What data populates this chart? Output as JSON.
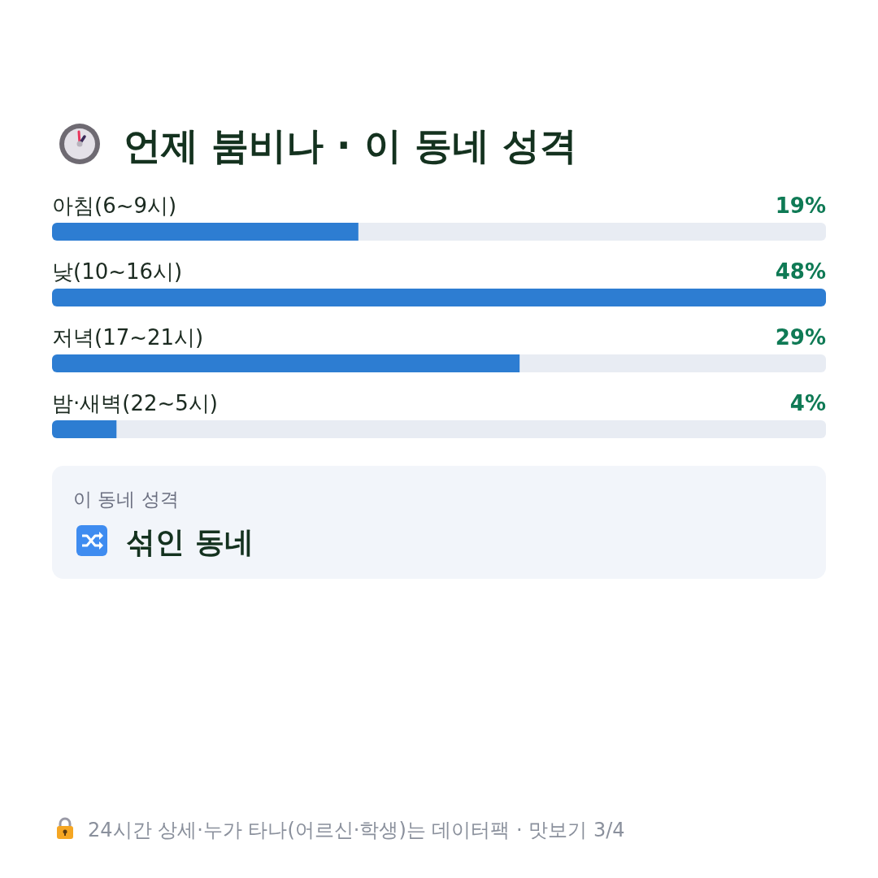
{
  "chart_data": {
    "type": "bar",
    "orientation": "horizontal",
    "title": "언제 붐비나 · 이 동네 성격",
    "categories": [
      "아침(6~9시)",
      "낮(10~16시)",
      "저녁(17~21시)",
      "밤·새벽(22~5시)"
    ],
    "values": [
      19,
      48,
      29,
      4
    ],
    "color": "#2d7dd2",
    "value_labels": [
      "19%",
      "48%",
      "29%",
      "4%"
    ],
    "annotations": [
      "이 동네 성격",
      "섞인 동네",
      "24시간 상세·누가 타나(어르신·학생)는 데이터팩 · 맛보기 3/4"
    ]
  }
}
